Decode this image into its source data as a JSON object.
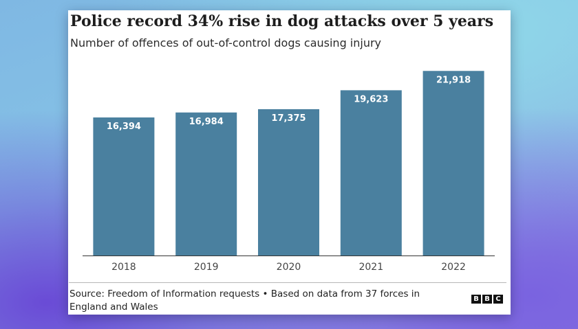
{
  "chart_data": {
    "type": "bar",
    "title": "Police record 34% rise in dog attacks over 5 years",
    "subtitle": "Number of offences of out-of-control dogs causing injury",
    "categories": [
      "2018",
      "2019",
      "2020",
      "2021",
      "2022"
    ],
    "values": [
      16394,
      16984,
      17375,
      19623,
      21918
    ],
    "value_labels": [
      "16,394",
      "16,984",
      "17,375",
      "19,623",
      "21,918"
    ],
    "ylim": [
      0,
      23000
    ],
    "grid": false,
    "legend": "none",
    "bar_color": "#4a809f"
  },
  "footer": {
    "source": "Source: Freedom of Information requests • Based on data from 37 forces in England and Wales",
    "logo_letters": [
      "B",
      "B",
      "C"
    ]
  }
}
